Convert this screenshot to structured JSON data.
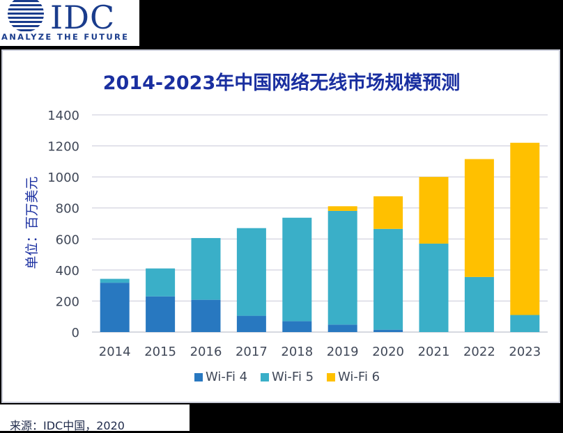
{
  "logo": {
    "text": "IDC",
    "tagline": "ANALYZE THE FUTURE"
  },
  "source": "来源：IDC中国，2020",
  "colors": {
    "wifi4": "#2878c0",
    "wifi5": "#3aafc8",
    "wifi6": "#ffc000",
    "title": "#1a2fa0",
    "grid": "#c8c8d8"
  },
  "chart_data": {
    "type": "bar",
    "stacked": true,
    "title": "2014-2023年中国网络无线市场规模预测",
    "xlabel": "",
    "ylabel": "单位：百万美元",
    "ylim": [
      0,
      1400
    ],
    "yticks": [
      0,
      200,
      400,
      600,
      800,
      1000,
      1200,
      1400
    ],
    "grid": true,
    "legend": "bottom",
    "categories": [
      "2014",
      "2015",
      "2016",
      "2017",
      "2018",
      "2019",
      "2020",
      "2021",
      "2022",
      "2023"
    ],
    "series": [
      {
        "name": "Wi-Fi 4",
        "values": [
          318,
          230,
          208,
          105,
          70,
          48,
          15,
          0,
          0,
          0
        ]
      },
      {
        "name": "Wi-Fi 5",
        "values": [
          25,
          180,
          398,
          565,
          667,
          733,
          650,
          570,
          355,
          110
        ]
      },
      {
        "name": "Wi-Fi 6",
        "values": [
          0,
          0,
          0,
          0,
          0,
          30,
          210,
          430,
          760,
          1110
        ]
      }
    ]
  }
}
